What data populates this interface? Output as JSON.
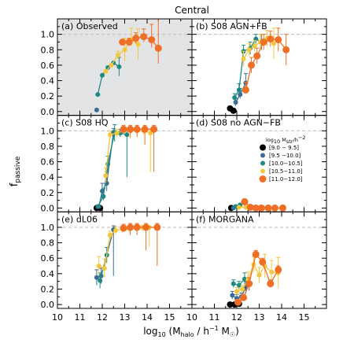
{
  "title": "Central",
  "xlabel_prefix": "log",
  "xlabel_sub": "10",
  "xlabel_rest": " (M",
  "xlabel_halo": "halo",
  "xlabel_units": " / h",
  "xlabel_sup": "−1",
  "xlabel_msun": " M",
  "xlabel_close": ")",
  "ylabel_main": "f",
  "ylabel_sub": "passive",
  "legend": {
    "title": "log",
    "title_sub": "10",
    "title_rest": " M",
    "title_sub2": "str",
    "title_rest2": "/h",
    "title_sup": "−2",
    "entries": [
      "[9.0 − 9.5]",
      "[9.5 −10.0]",
      "[10.0−10.5]",
      "[10.5−11.0]",
      "[11.0−12.0]"
    ]
  },
  "colors": {
    "panel_shade": "#e3e4e6",
    "dashed_line": "#bbbbbb",
    "series": [
      "#000000",
      "#3b6c97",
      "#1f8a84",
      "#f5c63c",
      "#f06f26"
    ]
  },
  "chart_data": {
    "type": "scatter",
    "xlim": [
      10,
      16
    ],
    "ylim": [
      -0.05,
      1.2
    ],
    "xticks": [
      10,
      11,
      12,
      13,
      14,
      15
    ],
    "xticklabels": [
      "10",
      "11",
      "12",
      "13",
      "14",
      "15"
    ],
    "yticks": [
      0.0,
      0.2,
      0.4,
      0.6,
      0.8,
      1.0
    ],
    "yticklabels": [
      "0.0",
      "0.2",
      "0.4",
      "0.6",
      "0.8",
      "1.0"
    ],
    "reference_line": 1.0,
    "series_names": [
      "[9.0 − 9.5]",
      "[9.5 −10.0]",
      "[10.0−10.5]",
      "[10.5−11.0]",
      "[11.0−12.0]"
    ],
    "panels": [
      {
        "label": "(a) Observed",
        "shaded": true,
        "series": [
          {
            "points": []
          },
          {
            "points": [
              [
                11.75,
                0.02,
                0,
                0
              ]
            ]
          },
          {
            "points": [
              [
                11.8,
                0.22,
                0,
                0
              ],
              [
                12.0,
                0.47,
                0,
                0
              ],
              [
                12.25,
                0.57,
                0,
                0
              ],
              [
                12.5,
                0.63,
                0,
                0
              ],
              [
                12.75,
                0.58,
                0.12,
                0.12
              ]
            ]
          },
          {
            "points": [
              [
                12.15,
                0.52,
                0,
                0
              ],
              [
                12.4,
                0.6,
                0,
                0
              ],
              [
                12.7,
                0.73,
                0.05,
                0.05
              ],
              [
                13.0,
                0.8,
                0.15,
                0.15
              ],
              [
                13.3,
                0.93,
                0.08,
                0.15
              ],
              [
                13.6,
                0.87,
                0.2,
                0.2
              ]
            ]
          },
          {
            "points": [
              [
                12.9,
                0.9,
                0,
                0
              ],
              [
                13.2,
                0.9,
                0.05,
                0.05
              ],
              [
                13.5,
                0.95,
                0.07,
                0.07
              ],
              [
                13.85,
                0.97,
                0.07,
                0.1
              ],
              [
                14.2,
                0.93,
                0.1,
                0.2
              ],
              [
                14.5,
                0.82,
                0.2,
                0.5
              ]
            ]
          }
        ]
      },
      {
        "label": "(b) S08 AGN+FB",
        "shaded": false,
        "series": [
          {
            "points": [
              [
                11.7,
                0.04,
                0.02,
                0.02
              ],
              [
                11.85,
                0.01,
                0,
                0
              ]
            ]
          },
          {
            "points": [
              [
                11.95,
                0.12,
                0.05,
                0.05
              ],
              [
                12.15,
                0.22,
                0.05,
                0.08
              ],
              [
                12.4,
                0.37,
                0.12,
                0.12
              ]
            ]
          },
          {
            "points": [
              [
                11.9,
                0.18,
                0.05,
                0.05
              ],
              [
                12.1,
                0.28,
                0.05,
                0.08
              ],
              [
                12.3,
                0.78,
                0.08,
                0.08
              ],
              [
                12.6,
                0.82,
                0.08,
                0.08
              ],
              [
                12.85,
                0.94,
                0.06,
                0.06
              ],
              [
                13.1,
                0.9,
                0.1,
                0.1
              ]
            ]
          },
          {
            "points": [
              [
                12.3,
                0.68,
                0.1,
                0.1
              ],
              [
                12.55,
                0.8,
                0.08,
                0.08
              ],
              [
                12.8,
                0.85,
                0.07,
                0.07
              ],
              [
                13.05,
                0.9,
                0.1,
                0.1
              ],
              [
                13.35,
                0.95,
                0.1,
                0.1
              ],
              [
                13.65,
                0.88,
                0.2,
                0.2
              ]
            ]
          },
          {
            "points": [
              [
                12.4,
                0.28,
                0.05,
                0.1
              ],
              [
                12.65,
                0.6,
                0.1,
                0.1
              ],
              [
                12.9,
                0.72,
                0.1,
                0.1
              ],
              [
                13.2,
                0.9,
                0.1,
                0.1
              ],
              [
                13.5,
                0.94,
                0.1,
                0.1
              ],
              [
                13.85,
                0.93,
                0.15,
                0.15
              ],
              [
                14.2,
                0.8,
                0.2,
                0.2
              ]
            ]
          }
        ]
      },
      {
        "label": "(c) S08 HQ",
        "shaded": false,
        "series": [
          {
            "points": [
              [
                11.75,
                0.0,
                0,
                0
              ],
              [
                11.9,
                0.0,
                0,
                0
              ]
            ]
          },
          {
            "points": [
              [
                11.85,
                0.02,
                0.02,
                0.02
              ],
              [
                12.0,
                0.22,
                0.05,
                0.1
              ],
              [
                12.2,
                0.32,
                0.1,
                0.15
              ],
              [
                12.5,
                0.98,
                0.1,
                0.05
              ]
            ]
          },
          {
            "points": [
              [
                11.8,
                0.02,
                0.02,
                0.02
              ],
              [
                12.05,
                0.15,
                0.05,
                0.1
              ],
              [
                12.25,
                0.57,
                0.1,
                0.1
              ],
              [
                12.55,
                0.98,
                0.12,
                0.1
              ],
              [
                12.8,
                0.97,
                0.05,
                0.05
              ],
              [
                13.1,
                0.95,
                0.55,
                0.05
              ]
            ]
          },
          {
            "points": [
              [
                12.15,
                0.42,
                0.1,
                0.1
              ],
              [
                12.35,
                0.95,
                0.05,
                0.05
              ],
              [
                12.65,
                0.97,
                0.05,
                0.05
              ],
              [
                12.95,
                1.0,
                0.05,
                0.02
              ],
              [
                13.25,
                1.0,
                0.1,
                0.02
              ],
              [
                13.55,
                1.0,
                0.05,
                0.02
              ],
              [
                13.85,
                1.0,
                0.05,
                0.02
              ],
              [
                14.15,
                0.97,
                0.5,
                0.05
              ]
            ]
          },
          {
            "points": [
              [
                12.95,
                1.02,
                0.05,
                0.05
              ],
              [
                13.25,
                1.02,
                0.1,
                0.05
              ],
              [
                13.55,
                1.02,
                0.1,
                0.05
              ],
              [
                13.9,
                1.02,
                0.2,
                0.05
              ],
              [
                14.3,
                1.02,
                0.55,
                0.05
              ]
            ]
          }
        ]
      },
      {
        "label": "(d) S08 no AGN−FB",
        "shaded": false,
        "series": [
          {
            "points": [
              [
                11.75,
                0.0,
                0,
                0
              ]
            ]
          },
          {
            "points": [
              [
                11.85,
                0.0,
                0,
                0
              ]
            ]
          },
          {
            "points": [
              [
                11.95,
                0.02,
                0.02,
                0.02
              ],
              [
                12.15,
                0.04,
                0.02,
                0.02
              ]
            ]
          },
          {
            "points": [
              [
                12.1,
                0.01,
                0,
                0
              ],
              [
                12.4,
                0.01,
                0,
                0
              ],
              [
                12.65,
                0.01,
                0,
                0
              ]
            ]
          },
          {
            "points": [
              [
                12.35,
                0.08,
                0.04,
                0.04
              ],
              [
                12.6,
                0.01,
                0,
                0
              ],
              [
                12.85,
                0.0,
                0,
                0
              ],
              [
                13.1,
                0.0,
                0,
                0
              ],
              [
                13.4,
                0.0,
                0,
                0
              ],
              [
                13.7,
                0.0,
                0,
                0
              ],
              [
                14.05,
                0.0,
                0,
                0
              ]
            ]
          }
        ]
      },
      {
        "label": "(e) dL06",
        "shaded": false,
        "series": [
          {
            "points": []
          },
          {
            "points": [
              [
                11.75,
                0.35,
                0.1,
                0.1
              ],
              [
                11.95,
                0.37,
                0.1,
                0.1
              ],
              [
                12.5,
                0.97,
                0.6,
                0.05
              ]
            ]
          },
          {
            "points": [
              [
                11.9,
                0.31,
                0.1,
                0.1
              ],
              [
                12.2,
                0.64,
                0.1,
                0.1
              ]
            ]
          },
          {
            "points": [
              [
                11.85,
                0.5,
                0.12,
                0.12
              ],
              [
                12.1,
                0.47,
                0.12,
                0.12
              ],
              [
                12.35,
                0.9,
                0.05,
                0.05
              ],
              [
                12.6,
                0.96,
                0.05,
                0.05
              ],
              [
                12.9,
                0.98,
                0.05,
                0.02
              ],
              [
                13.2,
                0.99,
                0.05,
                0.02
              ],
              [
                13.5,
                1.0,
                0.05,
                0.02
              ],
              [
                13.8,
                1.0,
                0.05,
                0.02
              ],
              [
                14.1,
                1.0,
                0.25,
                0.02
              ]
            ]
          },
          {
            "points": [
              [
                12.95,
                0.99,
                0.05,
                0.05
              ],
              [
                13.25,
                1.0,
                0.1,
                0.05
              ],
              [
                13.55,
                1.0,
                0.1,
                0.05
              ],
              [
                13.95,
                1.0,
                0.3,
                0.05
              ],
              [
                14.45,
                1.0,
                0.5,
                0.05
              ]
            ]
          }
        ]
      },
      {
        "label": "(f) MORGANA",
        "shaded": false,
        "series": [
          {
            "points": [
              [
                11.7,
                0.0,
                0,
                0
              ],
              [
                11.9,
                0.0,
                0,
                0
              ],
              [
                12.1,
                0.01,
                0,
                0
              ]
            ]
          },
          {
            "points": [
              [
                11.8,
                0.12,
                0.05,
                0.05
              ],
              [
                12.0,
                0.08,
                0.05,
                0.05
              ],
              [
                12.2,
                0.1,
                0.05,
                0.05
              ],
              [
                12.4,
                0.22,
                0.08,
                0.08
              ]
            ]
          },
          {
            "points": [
              [
                11.85,
                0.27,
                0.05,
                0.05
              ],
              [
                12.1,
                0.25,
                0.05,
                0.05
              ],
              [
                12.35,
                0.33,
                0.08,
                0.08
              ],
              [
                12.55,
                0.26,
                0.08,
                0.08
              ]
            ]
          },
          {
            "points": [
              [
                12.0,
                0.17,
                0.05,
                0.05
              ],
              [
                12.25,
                0.2,
                0.05,
                0.05
              ],
              [
                12.5,
                0.32,
                0.1,
                0.1
              ],
              [
                12.75,
                0.52,
                0.1,
                0.1
              ],
              [
                13.0,
                0.38,
                0.1,
                0.1
              ],
              [
                13.25,
                0.5,
                0.15,
                0.15
              ],
              [
                13.55,
                0.42,
                0.15,
                0.15
              ],
              [
                13.85,
                0.41,
                0.2,
                0.2
              ]
            ]
          },
          {
            "points": [
              [
                12.05,
                0.03,
                0.02,
                0.02
              ],
              [
                12.3,
                0.09,
                0.03,
                0.03
              ],
              [
                12.55,
                0.27,
                0.08,
                0.08
              ],
              [
                12.85,
                0.65,
                0.05,
                0.05
              ],
              [
                13.15,
                0.55,
                0.05,
                0.05
              ],
              [
                13.5,
                0.27,
                0.05,
                0.05
              ],
              [
                13.85,
                0.45,
                0.05,
                0.05
              ]
            ]
          }
        ]
      }
    ]
  }
}
